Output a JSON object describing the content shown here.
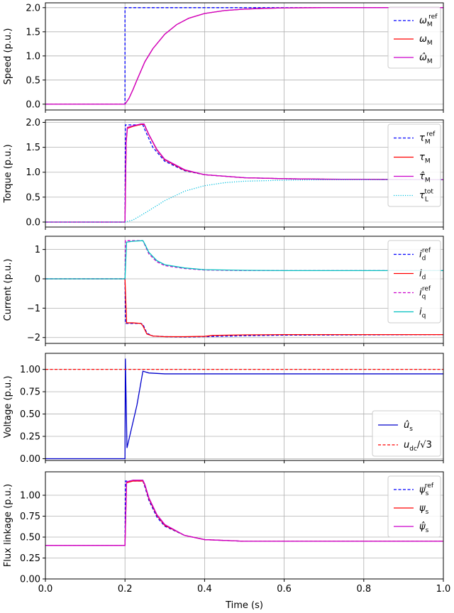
{
  "chart_data": [
    {
      "type": "line",
      "ylabel": "Speed (p.u.)",
      "xlim": [
        0,
        1
      ],
      "ylim": [
        -0.12,
        2.1
      ],
      "yticks": [
        0.0,
        0.5,
        1.0,
        1.5,
        2.0
      ],
      "ytick_labels": [
        "0.0",
        "0.5",
        "1.0",
        "1.5",
        "2.0"
      ],
      "legend_position": "right",
      "series": [
        {
          "name": "ω_M^ref",
          "label_main": "ω",
          "label_sub": "M",
          "label_sup": "ref",
          "hat": false,
          "color": "#0000ff",
          "dash": "dashed",
          "x": [
            0,
            0.2,
            0.2,
            1.0
          ],
          "y": [
            0,
            0,
            2.0,
            2.0
          ]
        },
        {
          "name": "ω_M",
          "label_main": "ω",
          "label_sub": "M",
          "label_sup": "",
          "hat": false,
          "color": "#ff0000",
          "dash": "solid",
          "x": [
            0,
            0.2,
            0.21,
            0.22,
            0.23,
            0.25,
            0.27,
            0.3,
            0.33,
            0.36,
            0.4,
            0.45,
            0.5,
            0.55,
            0.6,
            0.7,
            0.8,
            1.0
          ],
          "y": [
            0,
            0,
            0.12,
            0.3,
            0.5,
            0.88,
            1.15,
            1.45,
            1.65,
            1.78,
            1.88,
            1.94,
            1.97,
            1.985,
            1.995,
            2.0,
            2.0,
            2.0
          ]
        },
        {
          "name": "ω̂_M",
          "label_main": "ω",
          "label_sub": "M",
          "label_sup": "",
          "hat": true,
          "color": "#cc00cc",
          "dash": "solid",
          "x": [
            0,
            0.2,
            0.21,
            0.22,
            0.23,
            0.25,
            0.27,
            0.3,
            0.33,
            0.36,
            0.4,
            0.45,
            0.5,
            0.55,
            0.6,
            0.7,
            0.8,
            1.0
          ],
          "y": [
            0,
            0,
            0.12,
            0.3,
            0.5,
            0.88,
            1.15,
            1.45,
            1.65,
            1.78,
            1.88,
            1.94,
            1.97,
            1.985,
            1.995,
            2.0,
            2.0,
            2.0
          ]
        }
      ]
    },
    {
      "type": "line",
      "ylabel": "Torque (p.u.)",
      "xlim": [
        0,
        1
      ],
      "ylim": [
        -0.1,
        2.05
      ],
      "yticks": [
        0.0,
        0.5,
        1.0,
        1.5,
        2.0
      ],
      "ytick_labels": [
        "0.0",
        "0.5",
        "1.0",
        "1.5",
        "2.0"
      ],
      "legend_position": "right",
      "series": [
        {
          "name": "τ_M^ref",
          "label_main": "τ",
          "label_sub": "M",
          "label_sup": "ref",
          "hat": false,
          "color": "#0000ff",
          "dash": "dashed",
          "x": [
            0,
            0.2,
            0.201,
            0.22,
            0.245,
            0.25,
            0.27,
            0.3,
            0.35,
            0.4,
            0.5,
            0.6,
            0.7,
            1.0
          ],
          "y": [
            0,
            0,
            1.95,
            1.95,
            1.95,
            1.85,
            1.5,
            1.22,
            1.03,
            0.95,
            0.89,
            0.87,
            0.86,
            0.85
          ]
        },
        {
          "name": "τ_M",
          "label_main": "τ",
          "label_sub": "M",
          "label_sup": "",
          "hat": false,
          "color": "#ff0000",
          "dash": "solid",
          "x": [
            0,
            0.2,
            0.203,
            0.206,
            0.22,
            0.24,
            0.248,
            0.26,
            0.28,
            0.3,
            0.35,
            0.4,
            0.5,
            0.6,
            0.7,
            1.0
          ],
          "y": [
            0,
            0,
            1.6,
            1.88,
            1.92,
            1.96,
            1.96,
            1.75,
            1.45,
            1.25,
            1.04,
            0.95,
            0.89,
            0.87,
            0.86,
            0.85
          ]
        },
        {
          "name": "τ̂_M",
          "label_main": "τ",
          "label_sub": "M",
          "label_sup": "",
          "hat": true,
          "color": "#cc00cc",
          "dash": "solid",
          "x": [
            0,
            0.2,
            0.203,
            0.206,
            0.22,
            0.24,
            0.248,
            0.26,
            0.28,
            0.3,
            0.35,
            0.4,
            0.5,
            0.6,
            0.7,
            1.0
          ],
          "y": [
            0,
            0,
            1.62,
            1.9,
            1.93,
            1.97,
            1.97,
            1.76,
            1.46,
            1.26,
            1.05,
            0.95,
            0.89,
            0.87,
            0.86,
            0.85
          ]
        },
        {
          "name": "τ_L^tot",
          "label_main": "τ",
          "label_sub": "L",
          "label_sup": "tot",
          "hat": false,
          "color": "#00bfdf",
          "dash": "dotted",
          "x": [
            0,
            0.2,
            0.22,
            0.25,
            0.28,
            0.3,
            0.35,
            0.4,
            0.45,
            0.5,
            0.6,
            0.7,
            0.8,
            1.0
          ],
          "y": [
            0,
            0,
            0.04,
            0.18,
            0.33,
            0.43,
            0.62,
            0.73,
            0.79,
            0.82,
            0.84,
            0.85,
            0.85,
            0.85
          ]
        }
      ]
    },
    {
      "type": "line",
      "ylabel": "Current (p.u.)",
      "xlim": [
        0,
        1
      ],
      "ylim": [
        -2.2,
        1.45
      ],
      "yticks": [
        -2,
        -1,
        0,
        1
      ],
      "ytick_labels": [
        "−2",
        "−1",
        "0",
        "1"
      ],
      "legend_position": "right",
      "series": [
        {
          "name": "i_d^ref",
          "label_main": "i",
          "label_sub": "d",
          "label_sup": "ref",
          "hat": false,
          "color": "#0000ff",
          "dash": "dashed",
          "x": [
            0,
            0.2,
            0.201,
            0.24,
            0.245,
            0.255,
            0.27,
            0.3,
            0.35,
            0.4,
            0.5,
            0.6,
            1.0
          ],
          "y": [
            0,
            0,
            -1.52,
            -1.52,
            -1.55,
            -1.85,
            -1.95,
            -1.97,
            -1.98,
            -1.97,
            -1.94,
            -1.92,
            -1.9
          ]
        },
        {
          "name": "i_d",
          "label_main": "i",
          "label_sub": "d",
          "label_sup": "",
          "hat": false,
          "color": "#ff0000",
          "dash": "solid",
          "x": [
            0,
            0.2,
            0.204,
            0.22,
            0.24,
            0.245,
            0.255,
            0.27,
            0.3,
            0.35,
            0.4,
            0.42,
            0.5,
            0.6,
            1.0
          ],
          "y": [
            0,
            0,
            -1.5,
            -1.5,
            -1.52,
            -1.6,
            -1.88,
            -1.95,
            -1.97,
            -1.97,
            -1.96,
            -1.93,
            -1.91,
            -1.9,
            -1.9
          ]
        },
        {
          "name": "i_q^ref",
          "label_main": "i",
          "label_sub": "q",
          "label_sup": "ref",
          "hat": false,
          "color": "#cc00cc",
          "dash": "dashed",
          "x": [
            0,
            0.2,
            0.201,
            0.245,
            0.25,
            0.26,
            0.28,
            0.3,
            0.35,
            0.4,
            0.5,
            0.6,
            1.0
          ],
          "y": [
            0,
            0,
            1.3,
            1.3,
            1.15,
            0.85,
            0.58,
            0.45,
            0.35,
            0.3,
            0.28,
            0.28,
            0.28
          ]
        },
        {
          "name": "i_q",
          "label_main": "i",
          "label_sub": "q",
          "label_sup": "",
          "hat": false,
          "color": "#00bfbf",
          "dash": "solid",
          "x": [
            0,
            0.2,
            0.204,
            0.22,
            0.245,
            0.25,
            0.26,
            0.28,
            0.3,
            0.35,
            0.4,
            0.5,
            0.6,
            1.0
          ],
          "y": [
            0,
            0,
            1.25,
            1.28,
            1.3,
            1.18,
            0.9,
            0.62,
            0.48,
            0.37,
            0.31,
            0.29,
            0.28,
            0.28
          ]
        }
      ]
    },
    {
      "type": "line",
      "ylabel": "Voltage (p.u.)",
      "xlim": [
        0,
        1
      ],
      "ylim": [
        -0.02,
        1.18
      ],
      "yticks": [
        0.0,
        0.25,
        0.5,
        0.75,
        1.0
      ],
      "ytick_labels": [
        "0.00",
        "0.25",
        "0.50",
        "0.75",
        "1.00"
      ],
      "legend_position": "lower right",
      "series": [
        {
          "name": "û_s",
          "label_main": "u",
          "label_sub": "s",
          "label_sup": "",
          "hat": true,
          "color": "#0000cc",
          "dash": "solid",
          "x": [
            0,
            0.2,
            0.201,
            0.205,
            0.23,
            0.245,
            0.26,
            0.3,
            0.4,
            1.0
          ],
          "y": [
            0,
            0,
            1.12,
            0.12,
            0.6,
            0.98,
            0.96,
            0.95,
            0.95,
            0.95
          ]
        },
        {
          "name": "u_dc/√3",
          "label_main": "u",
          "label_sub": "dc",
          "label_sup": "",
          "suffix": "/√3",
          "hat": false,
          "color": "#ff0000",
          "dash": "dashed",
          "x": [
            0,
            1.0
          ],
          "y": [
            1.0,
            1.0
          ]
        }
      ]
    },
    {
      "type": "line",
      "ylabel": "Flux linkage (p.u.)",
      "xlabel": "Time (s)",
      "xlim": [
        0,
        1
      ],
      "ylim": [
        0,
        1.28
      ],
      "yticks": [
        0.0,
        0.25,
        0.5,
        0.75,
        1.0
      ],
      "ytick_labels": [
        "0.00",
        "0.25",
        "0.50",
        "0.75",
        "1.00"
      ],
      "xticks": [
        0.0,
        0.2,
        0.4,
        0.6,
        0.8,
        1.0
      ],
      "xtick_labels": [
        "0.0",
        "0.2",
        "0.4",
        "0.6",
        "0.8",
        "1.0"
      ],
      "legend_position": "right",
      "series": [
        {
          "name": "ψ_s^ref",
          "label_main": "ψ",
          "label_sub": "s",
          "label_sup": "ref",
          "hat": false,
          "color": "#0000ff",
          "dash": "dashed",
          "x": [
            0,
            0.2,
            0.201,
            0.245,
            0.25,
            0.26,
            0.28,
            0.3,
            0.35,
            0.4,
            0.5,
            0.6,
            1.0
          ],
          "y": [
            0.4,
            0.4,
            1.17,
            1.17,
            1.1,
            0.94,
            0.74,
            0.63,
            0.52,
            0.47,
            0.45,
            0.45,
            0.45
          ]
        },
        {
          "name": "ψ_s",
          "label_main": "ψ",
          "label_sub": "s",
          "label_sup": "",
          "hat": false,
          "color": "#ff0000",
          "dash": "solid",
          "x": [
            0,
            0.2,
            0.204,
            0.22,
            0.245,
            0.25,
            0.26,
            0.28,
            0.3,
            0.35,
            0.4,
            0.5,
            0.6,
            1.0
          ],
          "y": [
            0.4,
            0.4,
            1.15,
            1.17,
            1.17,
            1.12,
            0.96,
            0.76,
            0.64,
            0.52,
            0.47,
            0.45,
            0.45,
            0.45
          ]
        },
        {
          "name": "ψ̂_s",
          "label_main": "ψ",
          "label_sub": "s",
          "label_sup": "",
          "hat": true,
          "color": "#cc00cc",
          "dash": "solid",
          "x": [
            0,
            0.2,
            0.204,
            0.22,
            0.245,
            0.25,
            0.26,
            0.28,
            0.3,
            0.35,
            0.4,
            0.5,
            0.6,
            1.0
          ],
          "y": [
            0.4,
            0.4,
            1.16,
            1.18,
            1.18,
            1.13,
            0.97,
            0.77,
            0.65,
            0.52,
            0.47,
            0.45,
            0.45,
            0.45
          ]
        }
      ]
    }
  ]
}
